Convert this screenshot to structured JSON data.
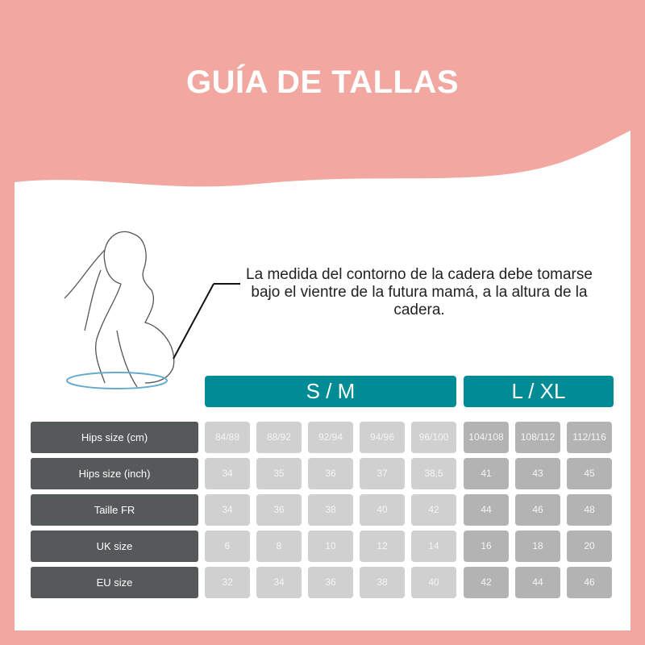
{
  "title": "GUÍA DE TALLAS",
  "description": "La medida del contorno de la cadera debe tomarse bajo el vientre de la futura mamá, a la altura de la cadera.",
  "colors": {
    "background": "#f2a7a0",
    "header": "#008b95",
    "label": "#55595a",
    "sm_cell": "#d0d0d0",
    "lxl_cell": "#b3b3b3"
  },
  "illustration": "pregnant-woman-measuring-tape",
  "groups": [
    {
      "label": "S / M"
    },
    {
      "label": "L / XL"
    }
  ],
  "rows": [
    {
      "label": "Hips size (cm)",
      "values": [
        "84/88",
        "88/92",
        "92/94",
        "94/96",
        "96/100",
        "104/108",
        "108/112",
        "112/116"
      ]
    },
    {
      "label": "Hips size (inch)",
      "values": [
        "34",
        "35",
        "36",
        "37",
        "38,5",
        "41",
        "43",
        "45"
      ]
    },
    {
      "label": "Taille FR",
      "values": [
        "34",
        "36",
        "38",
        "40",
        "42",
        "44",
        "46",
        "48"
      ]
    },
    {
      "label": "UK size",
      "values": [
        "6",
        "8",
        "10",
        "12",
        "14",
        "16",
        "18",
        "20"
      ]
    },
    {
      "label": "EU size",
      "values": [
        "32",
        "34",
        "36",
        "38",
        "40",
        "42",
        "44",
        "46"
      ]
    }
  ]
}
